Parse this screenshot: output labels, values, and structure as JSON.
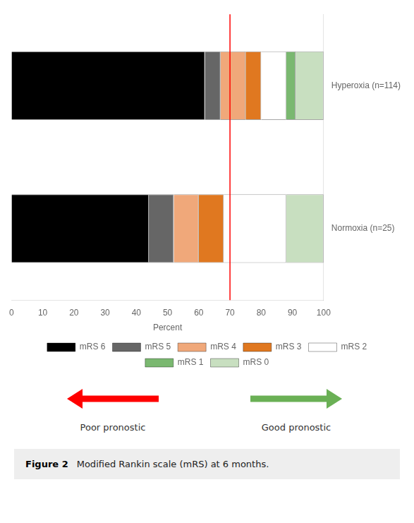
{
  "chart_data": {
    "type": "bar",
    "orientation": "horizontal",
    "stacked": true,
    "categories": [
      "Hyperoxia (n=114)",
      "Normoxia (n=25)"
    ],
    "series": [
      {
        "name": "mRS 6",
        "color": "#000000",
        "values": [
          62,
          44
        ]
      },
      {
        "name": "mRS 5",
        "color": "#666666",
        "values": [
          5,
          8
        ]
      },
      {
        "name": "mRS 4",
        "color": "#f0a87a",
        "values": [
          8,
          8
        ]
      },
      {
        "name": "mRS 3",
        "color": "#e07820",
        "values": [
          5,
          8
        ]
      },
      {
        "name": "mRS 2",
        "color": "#ffffff",
        "values": [
          8,
          20
        ]
      },
      {
        "name": "mRS 1",
        "color": "#7ab870",
        "values": [
          3,
          0
        ]
      },
      {
        "name": "mRS 0",
        "color": "#c8dfc0",
        "values": [
          9,
          12
        ]
      }
    ],
    "x_label": "Percent",
    "xlim": [
      0,
      100
    ],
    "xticks": [
      0,
      10,
      20,
      30,
      40,
      50,
      60,
      70,
      80,
      90,
      100
    ],
    "grid": false,
    "legend": "bottom",
    "vline": {
      "x": 70,
      "color": "#ff0000"
    },
    "annotations": [
      {
        "text": "Poor pronostic",
        "color": "#ff0000"
      },
      {
        "text": "Good pronostic",
        "color": "#6ab055"
      }
    ],
    "caption": [
      "Figure 2",
      "Modified Rankin scale (mRS) at 6 months."
    ]
  }
}
